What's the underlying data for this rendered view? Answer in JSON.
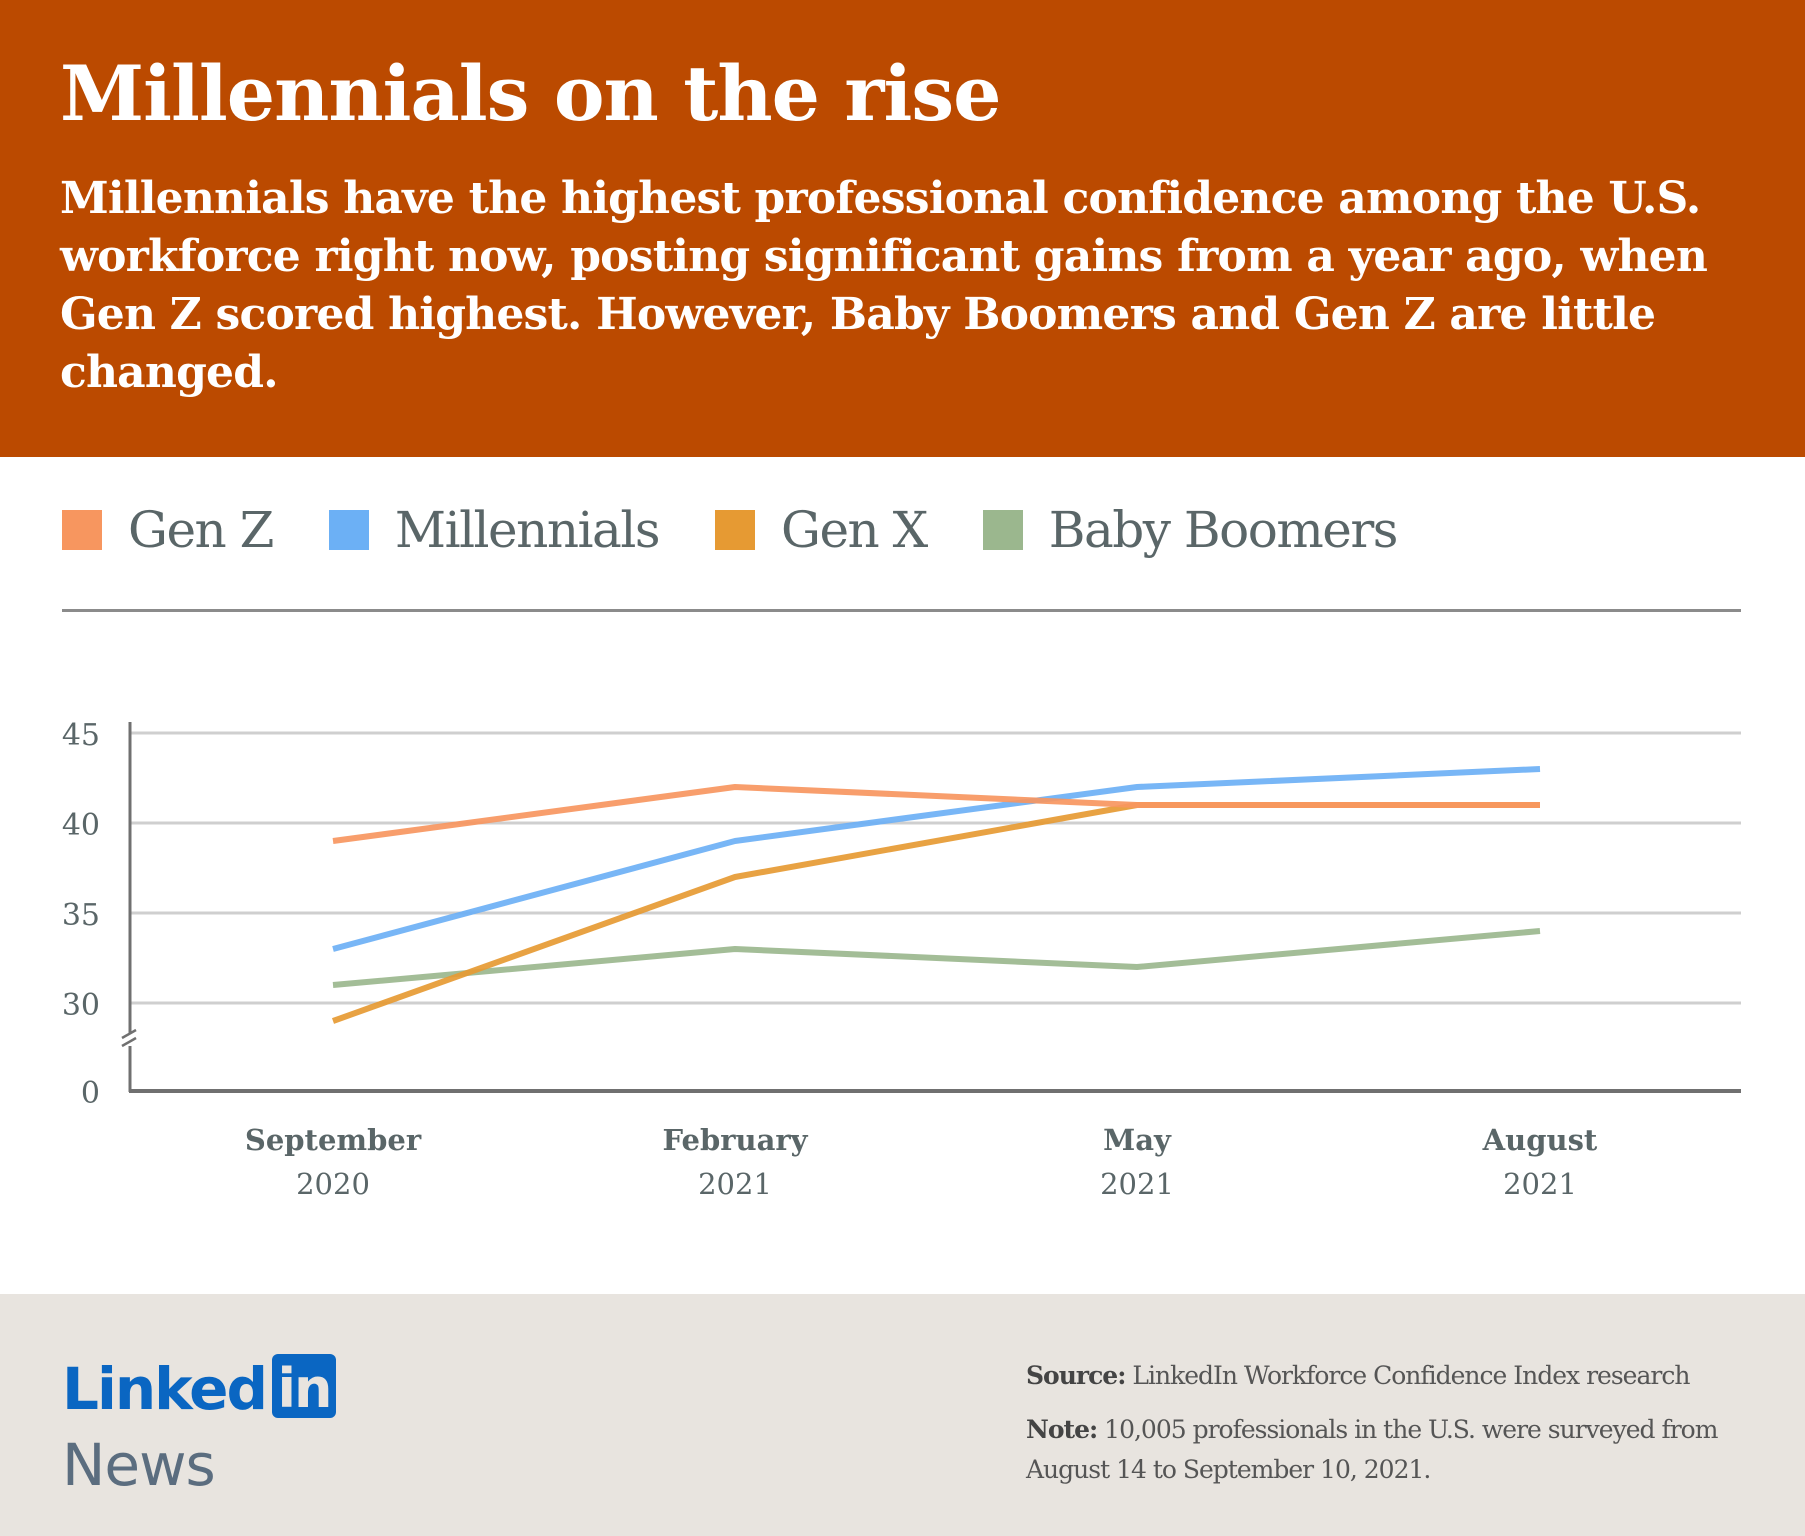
{
  "header": {
    "title": "Millennials on the rise",
    "subtitle": "Millennials have the highest professional confidence among the U.S. workforce right now, posting significant gains from a year ago, when Gen Z scored highest. However, Baby Boomers and Gen Z are little changed.",
    "background_color": "#BB4A00"
  },
  "legend": [
    {
      "label": "Gen Z",
      "color": "#F7965F"
    },
    {
      "label": "Millennials",
      "color": "#6CB0F5"
    },
    {
      "label": "Gen X",
      "color": "#E69A33"
    },
    {
      "label": "Baby Boomers",
      "color": "#9BB78E"
    }
  ],
  "chart_data": {
    "type": "line",
    "title": "Millennials on the rise",
    "xlabel": "",
    "ylabel": "",
    "categories": [
      "September 2020",
      "February 2021",
      "May 2021",
      "August 2021"
    ],
    "category_labels": [
      {
        "line1": "September",
        "line2": "2020"
      },
      {
        "line1": "February",
        "line2": "2021"
      },
      {
        "line1": "May",
        "line2": "2021"
      },
      {
        "line1": "August",
        "line2": "2021"
      }
    ],
    "yticks": [
      0,
      30,
      35,
      40,
      45
    ],
    "ylim": [
      0,
      45
    ],
    "y_axis_break": "between 0 and 30 (visible range 25-45 above break)",
    "grid": true,
    "legend_position": "top",
    "series": [
      {
        "name": "Gen Z",
        "color": "#F7965F",
        "values": [
          39,
          42,
          41,
          41
        ]
      },
      {
        "name": "Millennials",
        "color": "#6CB0F5",
        "values": [
          33,
          39,
          42,
          43
        ]
      },
      {
        "name": "Gen X",
        "color": "#E69A33",
        "values": [
          29,
          37,
          41,
          41
        ]
      },
      {
        "name": "Baby Boomers",
        "color": "#9BB78E",
        "values": [
          31,
          33,
          32,
          34
        ]
      }
    ]
  },
  "footer": {
    "brand_word": "Linked",
    "brand_box": "in",
    "brand_sub": "News",
    "source_label": "Source:",
    "source_text": " LinkedIn Workforce Confidence Index research",
    "note_label": "Note:",
    "note_text": " 10,005 professionals in the U.S. were surveyed from August 14 to September 10, 2021."
  }
}
